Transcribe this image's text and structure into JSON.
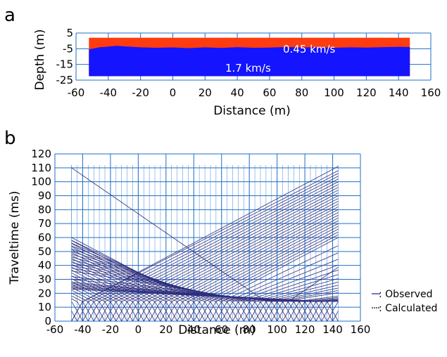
{
  "colors": {
    "grid": "#1f6fc8",
    "upper_layer": "#ff3b10",
    "lower_layer": "#1414ff",
    "observed": "#3a3aa8",
    "calculated": "#111111",
    "layer_text": "#ffffff"
  },
  "chart_data": [
    {
      "panel_label": "a",
      "type": "area",
      "xlabel": "Distance (m)",
      "ylabel": "Depth (m)",
      "xlim": [
        -60,
        160
      ],
      "ylim": [
        -25,
        5
      ],
      "xticks": [
        "-60",
        "-40",
        "-20",
        "0",
        "20",
        "40",
        "60",
        "80",
        "100",
        "120",
        "140",
        "160"
      ],
      "yticks": [
        "5",
        "-5",
        "-15",
        "-25"
      ],
      "grid": true,
      "model_extent_x": [
        -52,
        147
      ],
      "layers": [
        {
          "label": "0.45 km/s",
          "top": 2,
          "color": "upper_layer"
        },
        {
          "label": "1.7 km/s",
          "bottom": -22.5,
          "color": "lower_layer"
        }
      ],
      "interface": {
        "x": [
          -52,
          -45,
          -40,
          -35,
          -30,
          -25,
          -20,
          -10,
          0,
          10,
          20,
          30,
          40,
          50,
          60,
          70,
          80,
          90,
          100,
          110,
          120,
          130,
          140,
          147
        ],
        "y": [
          -5.4,
          -4.0,
          -3.7,
          -3.1,
          -3.5,
          -3.8,
          -4.1,
          -4.4,
          -4.2,
          -4.6,
          -4.1,
          -4.5,
          -4.0,
          -4.4,
          -4.3,
          -3.9,
          -4.2,
          -4.0,
          -4.4,
          -4.1,
          -4.3,
          -4.0,
          -3.8,
          -3.9
        ]
      }
    },
    {
      "panel_label": "b",
      "type": "line",
      "xlabel": "Distance (m)",
      "ylabel": "Traveltime (ms)",
      "xlim": [
        -60,
        160
      ],
      "ylim": [
        0,
        120
      ],
      "xticks": [
        "-60",
        "-40",
        "-20",
        "0",
        "20",
        "40",
        "60",
        "80",
        "100",
        "120",
        "140",
        "160"
      ],
      "yticks": [
        "0",
        "10",
        "20",
        "30",
        "40",
        "50",
        "60",
        "70",
        "80",
        "90",
        "100",
        "110",
        "120"
      ],
      "grid": true,
      "legend_position": "right",
      "legend": [
        {
          "label": ": Observed",
          "color": "observed"
        },
        {
          "label": ": Calculated",
          "color": "calculated"
        }
      ],
      "shots": [
        {
          "x": -48,
          "max_time": 111
        },
        {
          "x": -48,
          "max_time": 108
        },
        {
          "x": -44,
          "max_time": 106
        },
        {
          "x": -40,
          "max_time": 104
        },
        {
          "x": -36,
          "max_time": 102
        },
        {
          "x": -32,
          "max_time": 100
        },
        {
          "x": -28,
          "max_time": 98
        },
        {
          "x": -24,
          "max_time": 96
        },
        {
          "x": -20,
          "max_time": 94
        },
        {
          "x": -16,
          "max_time": 92
        },
        {
          "x": -12,
          "max_time": 90
        },
        {
          "x": -8,
          "max_time": 88
        },
        {
          "x": -4,
          "max_time": 86
        },
        {
          "x": 0,
          "max_time": 84
        },
        {
          "x": 4,
          "max_time": 82
        },
        {
          "x": 8,
          "max_time": 80
        },
        {
          "x": 12,
          "max_time": 78
        },
        {
          "x": 16,
          "max_time": 76
        },
        {
          "x": 20,
          "max_time": 74
        },
        {
          "x": 24,
          "max_time": 72
        },
        {
          "x": 28,
          "max_time": 70
        },
        {
          "x": 32,
          "max_time": 68
        },
        {
          "x": 36,
          "max_time": 66
        },
        {
          "x": 40,
          "max_time": 64
        },
        {
          "x": 44,
          "max_time": 62
        },
        {
          "x": 48,
          "max_time": 60
        },
        {
          "x": 52,
          "max_time": 58
        },
        {
          "x": 56,
          "max_time": 56
        },
        {
          "x": 60,
          "max_time": 54
        },
        {
          "x": 64,
          "max_time": 52
        },
        {
          "x": 68,
          "max_time": 50
        },
        {
          "x": 72,
          "max_time": 48
        },
        {
          "x": 76,
          "max_time": 46
        },
        {
          "x": 80,
          "max_time": 44
        },
        {
          "x": 84,
          "max_time": 42
        },
        {
          "x": 88,
          "max_time": 40
        },
        {
          "x": 92,
          "max_time": 38
        },
        {
          "x": 96,
          "max_time": 36
        },
        {
          "x": 100,
          "max_time": 110
        },
        {
          "x": 104,
          "max_time": 32
        },
        {
          "x": 108,
          "max_time": 30
        },
        {
          "x": 112,
          "max_time": 28
        },
        {
          "x": 116,
          "max_time": 27
        },
        {
          "x": 120,
          "max_time": 26
        },
        {
          "x": 124,
          "max_time": 25
        },
        {
          "x": 128,
          "max_time": 24
        },
        {
          "x": 132,
          "max_time": 24
        },
        {
          "x": 136,
          "max_time": 23
        },
        {
          "x": 140,
          "max_time": 23
        },
        {
          "x": 144,
          "max_time": 24
        }
      ]
    }
  ]
}
